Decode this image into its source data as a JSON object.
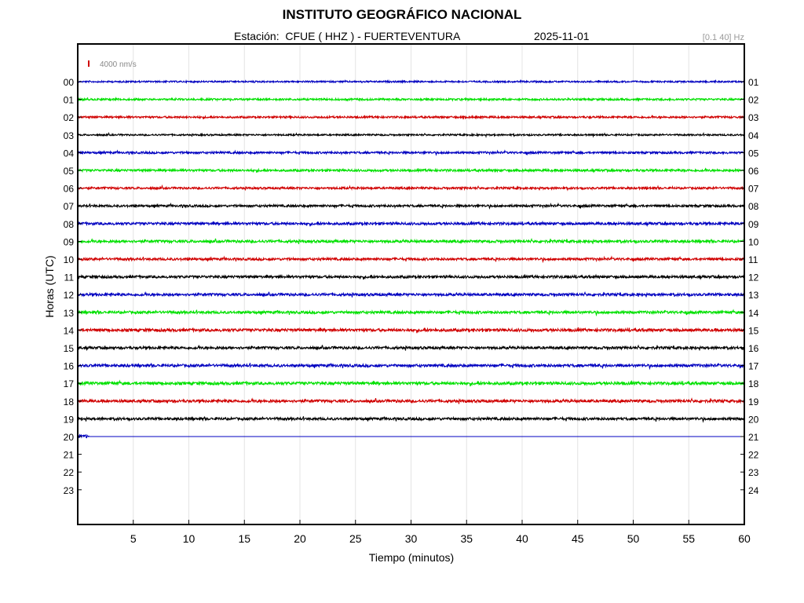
{
  "header": {
    "title": "INSTITUTO GEOGRÁFICO NACIONAL",
    "subtitle": "Estación:  CFUE ( HHZ ) - FUERTEVENTURA",
    "date": "2025-11-01",
    "filter": "[0.1 40] Hz"
  },
  "chart_data": {
    "type": "line",
    "title": "INSTITUTO GEOGRÁFICO NACIONAL",
    "xlabel": "Tiempo (minutos)",
    "ylabel": "Horas (UTC)",
    "xlim": [
      0,
      60
    ],
    "x_ticks": [
      5,
      10,
      15,
      20,
      25,
      30,
      35,
      40,
      45,
      50,
      55,
      60
    ],
    "left_ticks": [
      "00",
      "01",
      "02",
      "03",
      "04",
      "05",
      "06",
      "07",
      "08",
      "09",
      "10",
      "11",
      "12",
      "13",
      "14",
      "15",
      "16",
      "17",
      "18",
      "19",
      "20",
      "21",
      "22",
      "23"
    ],
    "right_ticks": [
      "01",
      "02",
      "03",
      "04",
      "05",
      "06",
      "07",
      "08",
      "09",
      "10",
      "11",
      "12",
      "13",
      "14",
      "15",
      "16",
      "17",
      "18",
      "19",
      "20",
      "21",
      "22",
      "23",
      "24"
    ],
    "scale_label": "4000 nm/s",
    "grid": "vertical",
    "trace_colors": [
      "#0000c0",
      "#00e000",
      "#d00000",
      "#000000"
    ],
    "series": [
      {
        "hour": "00",
        "start_min": 0,
        "end_min": 60,
        "amplitude": 1.0
      },
      {
        "hour": "01",
        "start_min": 0,
        "end_min": 60,
        "amplitude": 1.2
      },
      {
        "hour": "02",
        "start_min": 0,
        "end_min": 60,
        "amplitude": 1.2
      },
      {
        "hour": "03",
        "start_min": 0,
        "end_min": 60,
        "amplitude": 1.0
      },
      {
        "hour": "04",
        "start_min": 0,
        "end_min": 60,
        "amplitude": 1.3
      },
      {
        "hour": "05",
        "start_min": 0,
        "end_min": 60,
        "amplitude": 1.4
      },
      {
        "hour": "06",
        "start_min": 0,
        "end_min": 60,
        "amplitude": 1.3
      },
      {
        "hour": "07",
        "start_min": 0,
        "end_min": 60,
        "amplitude": 1.4
      },
      {
        "hour": "08",
        "start_min": 0,
        "end_min": 60,
        "amplitude": 1.6
      },
      {
        "hour": "09",
        "start_min": 0,
        "end_min": 60,
        "amplitude": 1.6
      },
      {
        "hour": "10",
        "start_min": 0,
        "end_min": 60,
        "amplitude": 1.5
      },
      {
        "hour": "11",
        "start_min": 0,
        "end_min": 60,
        "amplitude": 1.6
      },
      {
        "hour": "12",
        "start_min": 0,
        "end_min": 60,
        "amplitude": 1.6
      },
      {
        "hour": "13",
        "start_min": 0,
        "end_min": 60,
        "amplitude": 1.6
      },
      {
        "hour": "14",
        "start_min": 0,
        "end_min": 60,
        "amplitude": 1.8
      },
      {
        "hour": "15",
        "start_min": 0,
        "end_min": 60,
        "amplitude": 1.6
      },
      {
        "hour": "16",
        "start_min": 0,
        "end_min": 60,
        "amplitude": 1.7
      },
      {
        "hour": "17",
        "start_min": 0,
        "end_min": 60,
        "amplitude": 1.8
      },
      {
        "hour": "18",
        "start_min": 0,
        "end_min": 60,
        "amplitude": 1.7
      },
      {
        "hour": "19",
        "start_min": 0,
        "end_min": 60,
        "amplitude": 1.6
      },
      {
        "hour": "20",
        "start_min": 0,
        "end_min": 60,
        "amplitude": 0.1,
        "active_until_min": 1
      }
    ]
  }
}
